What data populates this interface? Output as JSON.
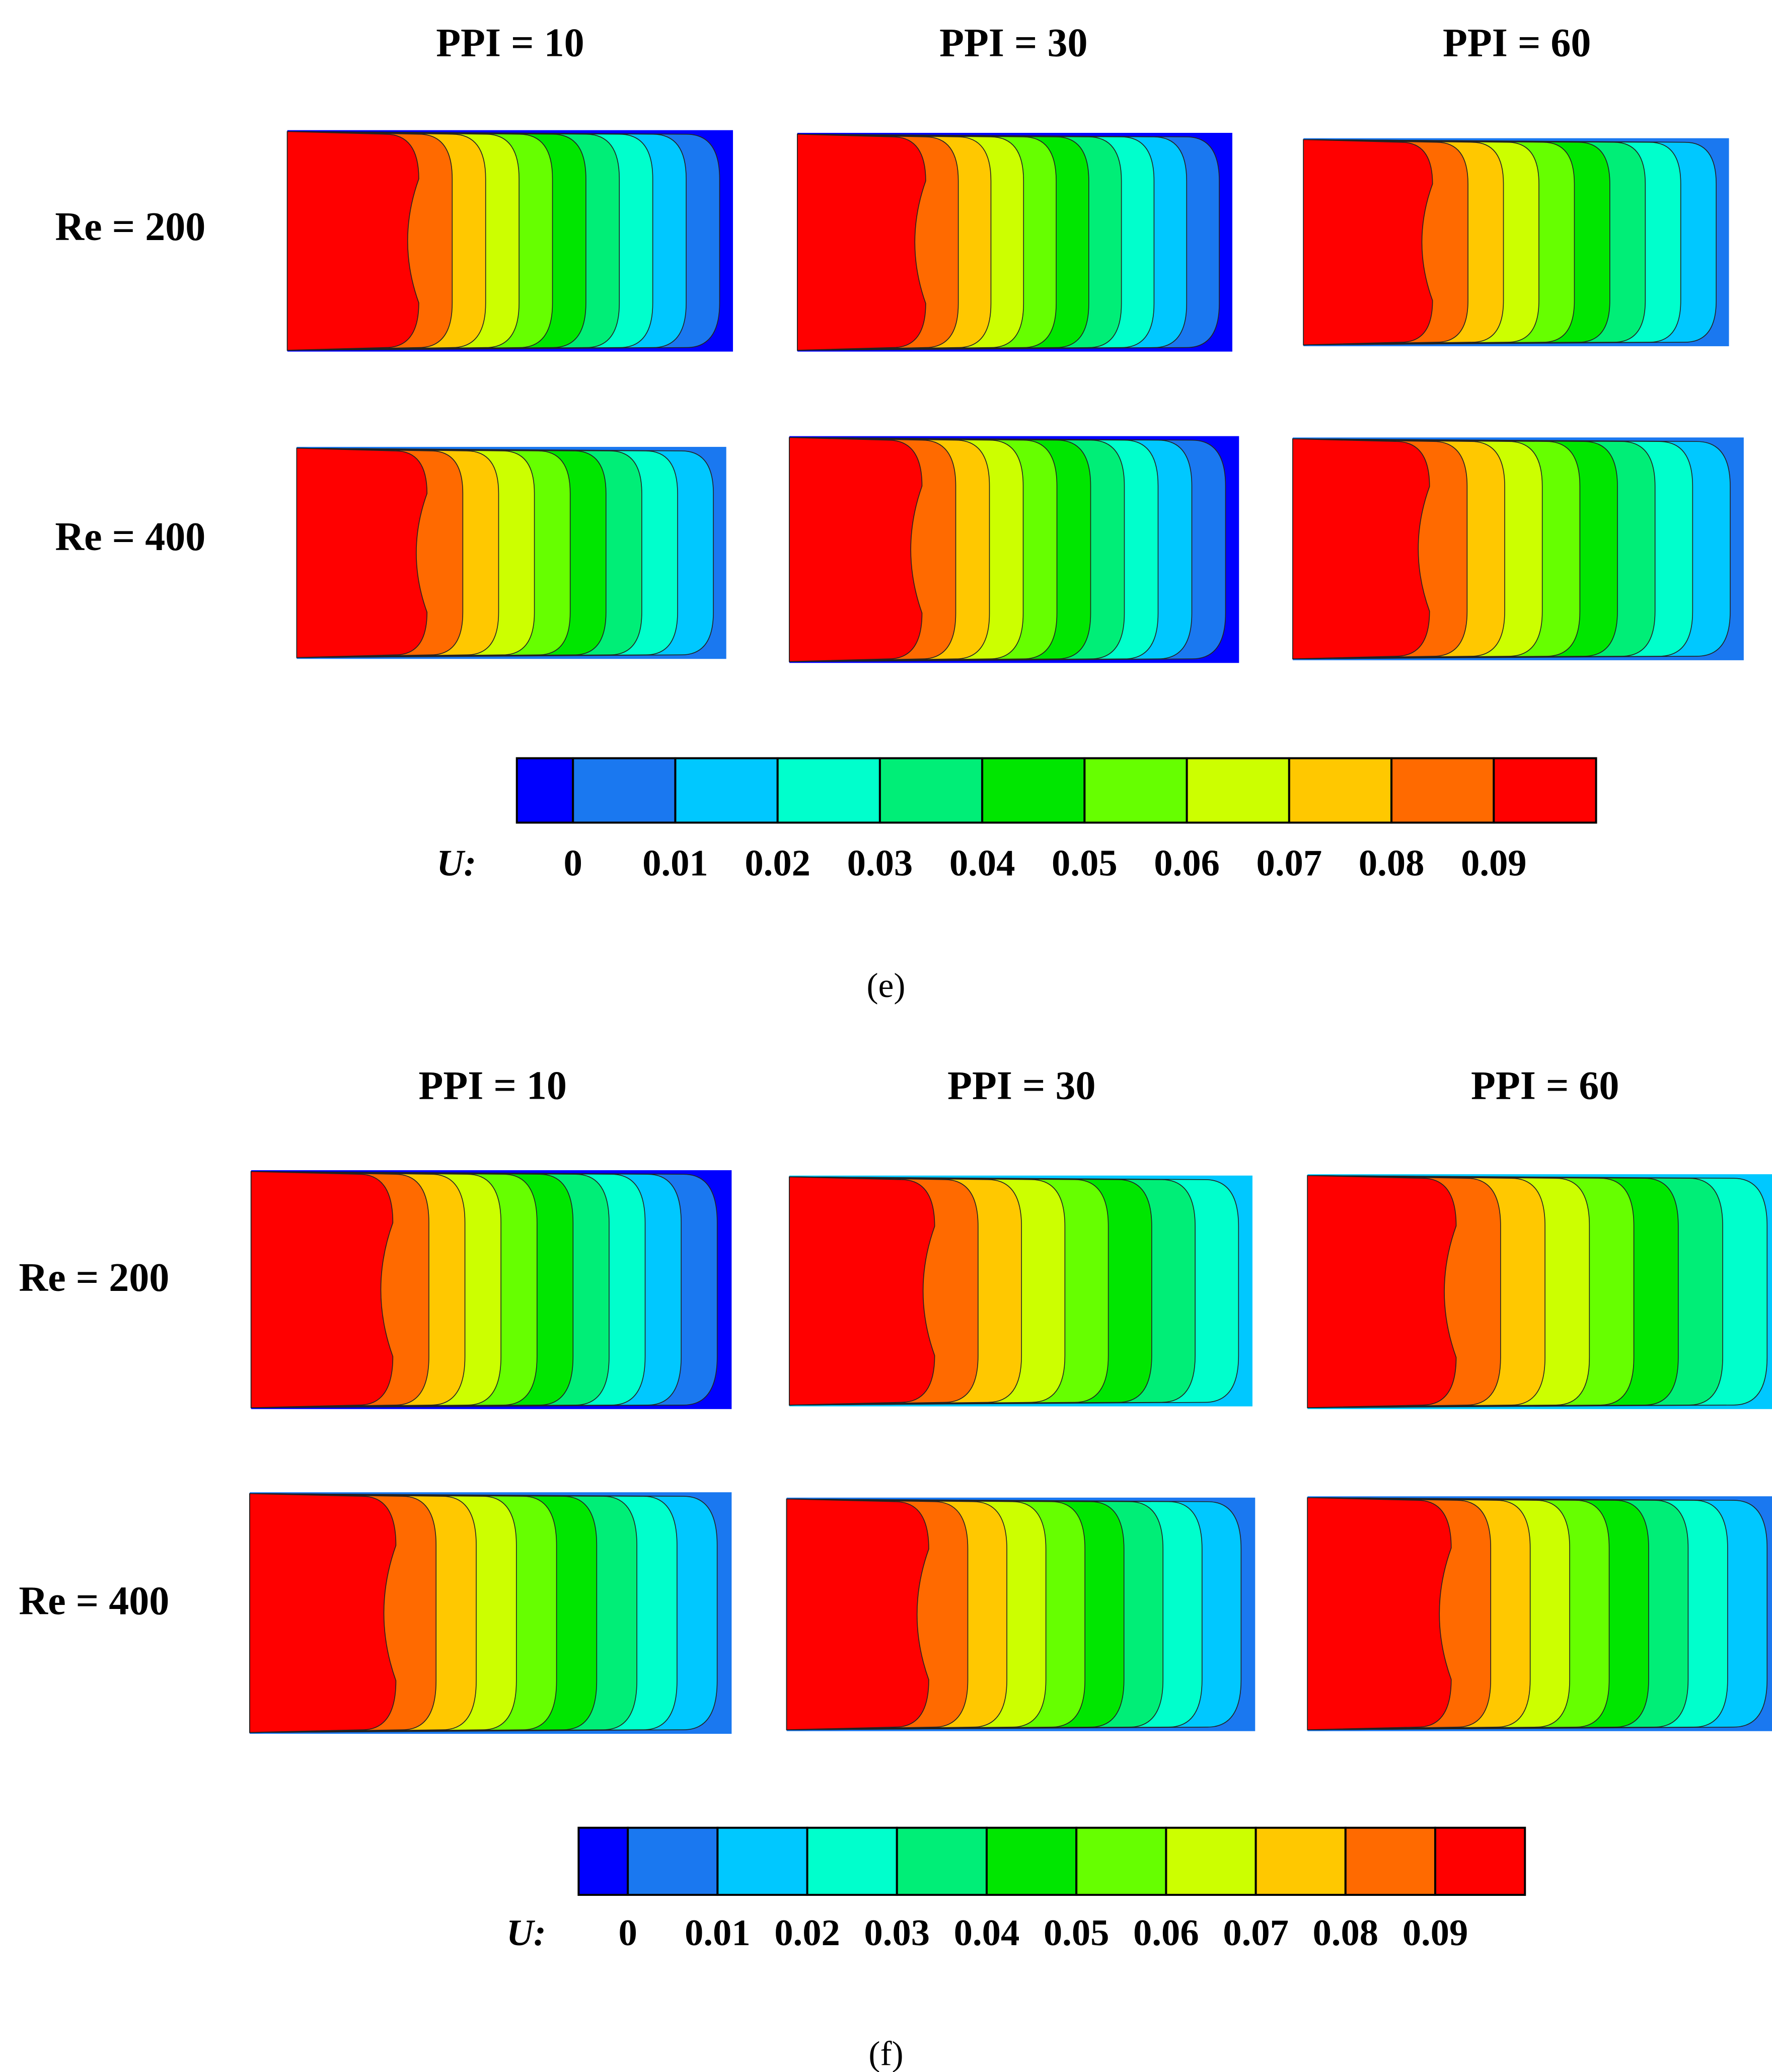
{
  "panels": [
    {
      "caption": "(e)",
      "columns": [
        "PPI = 10",
        "PPI = 30",
        "PPI = 60"
      ],
      "rows": [
        "Re = 200",
        "Re = 400"
      ],
      "colorbar": {
        "label": "U:",
        "ticks": [
          "0",
          "0.01",
          "0.02",
          "0.03",
          "0.04",
          "0.05",
          "0.06",
          "0.07",
          "0.08",
          "0.09"
        ],
        "colors": [
          "#0000ff",
          "#1a78f0",
          "#00c8ff",
          "#00ffcc",
          "#00ee77",
          "#00e600",
          "#66ff00",
          "#ccff00",
          "#ffc800",
          "#ff6a00",
          "#ff0000"
        ]
      }
    },
    {
      "caption": "(f)",
      "columns": [
        "PPI = 10",
        "PPI = 30",
        "PPI = 60"
      ],
      "rows": [
        "Re = 200",
        "Re = 400"
      ],
      "colorbar": {
        "label": "U:",
        "ticks": [
          "0",
          "0.01",
          "0.02",
          "0.03",
          "0.04",
          "0.05",
          "0.06",
          "0.07",
          "0.08",
          "0.09"
        ],
        "colors": [
          "#0000ff",
          "#1a78f0",
          "#00c8ff",
          "#00ffcc",
          "#00ee77",
          "#00e600",
          "#66ff00",
          "#ccff00",
          "#ffc800",
          "#ff6a00",
          "#ff0000"
        ]
      }
    }
  ]
}
